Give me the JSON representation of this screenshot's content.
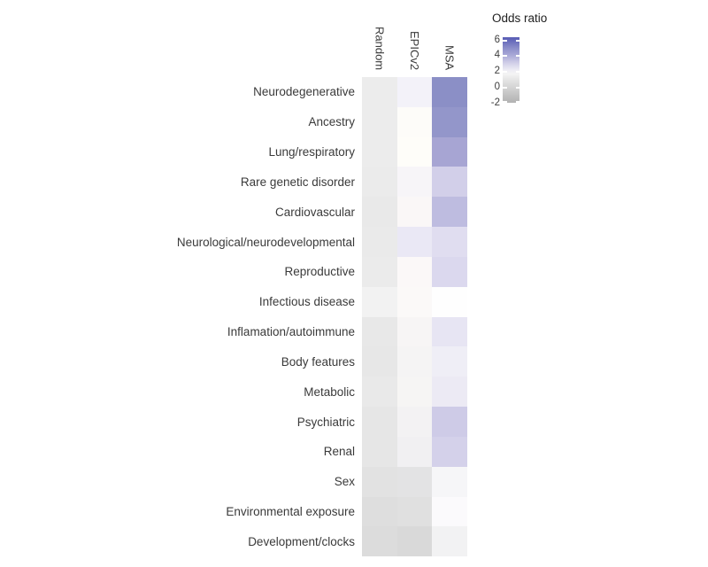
{
  "chart_data": {
    "type": "heatmap",
    "title": "",
    "columns": [
      "Random",
      "EPICv2",
      "MSA"
    ],
    "rows": [
      "Neurodegenerative",
      "Ancestry",
      "Lung/respiratory",
      "Rare genetic disorder",
      "Cardiovascular",
      "Neurological/neurodevelopmental",
      "Reproductive",
      "Infectious disease",
      "Inflamation/autoimmune",
      "Body features",
      "Metabolic",
      "Psychiatric",
      "Renal",
      "Sex",
      "Environmental exposure",
      "Development/clocks"
    ],
    "cell_colors": [
      [
        "#ececec",
        "#f3f2f9",
        "#8b8fc6"
      ],
      [
        "#ececec",
        "#fdfcf9",
        "#9396ca"
      ],
      [
        "#ececec",
        "#fefdf9",
        "#a7a5d3"
      ],
      [
        "#ebebeb",
        "#f7f5f8",
        "#d2cfe9"
      ],
      [
        "#e9e9e9",
        "#faf7f7",
        "#bebce0"
      ],
      [
        "#eaeaea",
        "#eae8f5",
        "#e0ddf0"
      ],
      [
        "#ebebeb",
        "#fbf8f8",
        "#dbd8ee"
      ],
      [
        "#f2f2f2",
        "#fbf9f8",
        "#fefefe"
      ],
      [
        "#e8e8e8",
        "#f7f5f5",
        "#e7e5f3"
      ],
      [
        "#e7e7e7",
        "#f5f4f4",
        "#efeef6"
      ],
      [
        "#e9e9e9",
        "#f6f5f4",
        "#eceaf4"
      ],
      [
        "#e6e6e6",
        "#f3f2f3",
        "#cecbe7"
      ],
      [
        "#e6e6e6",
        "#f1f0f2",
        "#d4d1ea"
      ],
      [
        "#e2e2e2",
        "#e3e3e4",
        "#f6f6f8"
      ],
      [
        "#dedede",
        "#e0e0e0",
        "#fbfafc"
      ],
      [
        "#dcdcdc",
        "#d9d9d9",
        "#f2f2f3"
      ]
    ],
    "odds_ratio_estimated": [
      [
        1.2,
        2.0,
        4.6
      ],
      [
        1.2,
        1.7,
        4.4
      ],
      [
        1.2,
        1.7,
        4.0
      ],
      [
        1.2,
        1.8,
        3.1
      ],
      [
        1.1,
        1.7,
        3.6
      ],
      [
        1.1,
        2.3,
        2.7
      ],
      [
        1.2,
        1.7,
        2.8
      ],
      [
        1.5,
        1.7,
        1.6
      ],
      [
        1.1,
        1.6,
        2.5
      ],
      [
        1.0,
        1.6,
        2.2
      ],
      [
        1.1,
        1.6,
        2.3
      ],
      [
        1.0,
        1.5,
        3.2
      ],
      [
        1.0,
        1.5,
        3.0
      ],
      [
        0.8,
        0.9,
        1.8
      ],
      [
        0.6,
        0.8,
        1.7
      ],
      [
        0.5,
        0.4,
        1.4
      ]
    ],
    "values_are_estimates_from_color": true,
    "legend": {
      "title": "Odds ratio",
      "ticks": [
        {
          "label": "6",
          "pos": 0.036
        },
        {
          "label": "4",
          "pos": 0.277
        },
        {
          "label": "2",
          "pos": 0.518
        },
        {
          "label": "0",
          "pos": 0.759
        },
        {
          "label": "-2",
          "pos": 1.0
        }
      ],
      "gradient_stops": [
        {
          "pos": 0.0,
          "color": "#5a5fb5"
        },
        {
          "pos": 0.036,
          "color": "#6165b9"
        },
        {
          "pos": 0.16,
          "color": "#8a8cc9"
        },
        {
          "pos": 0.277,
          "color": "#aaa9d7"
        },
        {
          "pos": 0.4,
          "color": "#d3d1e9"
        },
        {
          "pos": 0.5,
          "color": "#edecf4"
        },
        {
          "pos": 0.56,
          "color": "#f4f4f4"
        },
        {
          "pos": 0.63,
          "color": "#e8e8e8"
        },
        {
          "pos": 0.759,
          "color": "#d5d5d5"
        },
        {
          "pos": 0.88,
          "color": "#c3c3c3"
        },
        {
          "pos": 1.0,
          "color": "#b2b2b2"
        }
      ],
      "value_range_top": 6.3,
      "value_range_bottom": -2
    },
    "axis_ranges": {
      "n_rows": 16,
      "n_cols": 3
    },
    "grid_lines": false,
    "legend_position": "top-right"
  }
}
